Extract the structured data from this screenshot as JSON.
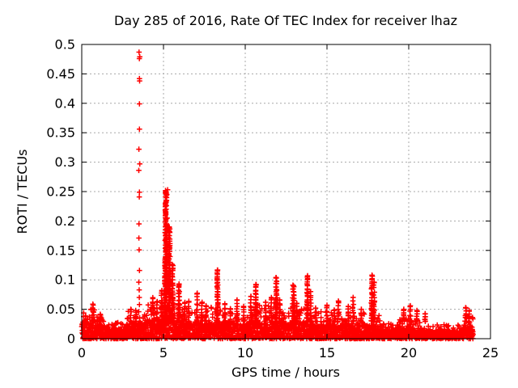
{
  "chart_data": {
    "type": "scatter",
    "title": "Day 285 of 2016, Rate Of TEC Index for receiver lhaz",
    "xlabel": "GPS time / hours",
    "ylabel": "ROTI / TECUs",
    "xlim": [
      0,
      25
    ],
    "ylim": [
      0,
      0.5
    ],
    "xticks": [
      0,
      5,
      10,
      15,
      20,
      25
    ],
    "yticks": [
      0,
      0.05,
      0.1,
      0.15,
      0.2,
      0.25,
      0.3,
      0.35,
      0.4,
      0.45,
      0.5
    ],
    "grid": true,
    "legend": "none",
    "marker": "plus",
    "marker_color": "#ff0000",
    "grid_color": "#a8a8a8",
    "border_color": "#000000",
    "background": "#ffffff",
    "x_data_range": [
      0,
      23.95
    ],
    "outlier_column": {
      "x": 3.52,
      "values": [
        0.487,
        0.479,
        0.476,
        0.442,
        0.438,
        0.399,
        0.356,
        0.322,
        0.297,
        0.286,
        0.249,
        0.241,
        0.195,
        0.171,
        0.151,
        0.116,
        0.096,
        0.083,
        0.07,
        0.058
      ]
    },
    "secondary_peak_points": [
      [
        5.17,
        0.249
      ],
      [
        5.21,
        0.245
      ],
      [
        5.25,
        0.253
      ],
      [
        5.18,
        0.226
      ],
      [
        5.23,
        0.205
      ],
      [
        5.2,
        0.187
      ],
      [
        5.12,
        0.175
      ],
      [
        5.22,
        0.162
      ]
    ],
    "band_segments": [
      {
        "x0": 0.0,
        "x1": 0.55,
        "solid": 0.028,
        "ragged": 0.045
      },
      {
        "x0": 0.55,
        "x1": 0.95,
        "solid": 0.032,
        "ragged": 0.052
      },
      {
        "x0": 0.95,
        "x1": 1.45,
        "solid": 0.024,
        "ragged": 0.038
      },
      {
        "x0": 1.45,
        "x1": 2.75,
        "solid": 0.017,
        "ragged": 0.028
      },
      {
        "x0": 2.75,
        "x1": 3.8,
        "solid": 0.026,
        "ragged": 0.048
      },
      {
        "x0": 3.8,
        "x1": 4.85,
        "solid": 0.03,
        "ragged": 0.058
      },
      {
        "x0": 4.85,
        "x1": 5.65,
        "solid": 0.038,
        "ragged": 0.09
      },
      {
        "x0": 5.65,
        "x1": 6.2,
        "solid": 0.03,
        "ragged": 0.062
      },
      {
        "x0": 6.2,
        "x1": 7.9,
        "solid": 0.027,
        "ragged": 0.05
      },
      {
        "x0": 7.9,
        "x1": 8.5,
        "solid": 0.028,
        "ragged": 0.055
      },
      {
        "x0": 8.5,
        "x1": 10.2,
        "solid": 0.026,
        "ragged": 0.048
      },
      {
        "x0": 10.2,
        "x1": 12.1,
        "solid": 0.028,
        "ragged": 0.058
      },
      {
        "x0": 12.1,
        "x1": 14.1,
        "solid": 0.028,
        "ragged": 0.055
      },
      {
        "x0": 14.1,
        "x1": 17.6,
        "solid": 0.024,
        "ragged": 0.046
      },
      {
        "x0": 17.6,
        "x1": 18.35,
        "solid": 0.022,
        "ragged": 0.042
      },
      {
        "x0": 18.35,
        "x1": 19.45,
        "solid": 0.015,
        "ragged": 0.026
      },
      {
        "x0": 19.45,
        "x1": 20.8,
        "solid": 0.018,
        "ragged": 0.035
      },
      {
        "x0": 20.8,
        "x1": 23.25,
        "solid": 0.013,
        "ragged": 0.024
      },
      {
        "x0": 23.25,
        "x1": 23.95,
        "solid": 0.02,
        "ragged": 0.04
      }
    ],
    "spikes": [
      {
        "x": 0.7,
        "max": 0.057,
        "w": 0.07,
        "d": 1
      },
      {
        "x": 1.15,
        "max": 0.04,
        "w": 0.05,
        "d": 1
      },
      {
        "x": 3.0,
        "max": 0.05,
        "w": 0.06,
        "d": 1
      },
      {
        "x": 3.3,
        "max": 0.048,
        "w": 0.05,
        "d": 1
      },
      {
        "x": 4.35,
        "max": 0.068,
        "w": 0.08,
        "d": 1
      },
      {
        "x": 4.6,
        "max": 0.062,
        "w": 0.06,
        "d": 1
      },
      {
        "x": 4.9,
        "max": 0.082,
        "w": 0.07,
        "d": 1
      },
      {
        "x": 5.15,
        "max": 0.25,
        "w": 0.1,
        "d": 3
      },
      {
        "x": 5.35,
        "max": 0.19,
        "w": 0.09,
        "d": 2
      },
      {
        "x": 5.55,
        "max": 0.125,
        "w": 0.07,
        "d": 2
      },
      {
        "x": 5.95,
        "max": 0.092,
        "w": 0.06,
        "d": 2
      },
      {
        "x": 6.3,
        "max": 0.06,
        "w": 0.05,
        "d": 1
      },
      {
        "x": 6.55,
        "max": 0.062,
        "w": 0.05,
        "d": 1
      },
      {
        "x": 7.05,
        "max": 0.076,
        "w": 0.05,
        "d": 1
      },
      {
        "x": 7.35,
        "max": 0.06,
        "w": 0.05,
        "d": 1
      },
      {
        "x": 7.6,
        "max": 0.056,
        "w": 0.04,
        "d": 1
      },
      {
        "x": 8.3,
        "max": 0.115,
        "w": 0.05,
        "d": 2
      },
      {
        "x": 8.75,
        "max": 0.058,
        "w": 0.04,
        "d": 1
      },
      {
        "x": 9.1,
        "max": 0.05,
        "w": 0.04,
        "d": 1
      },
      {
        "x": 9.5,
        "max": 0.066,
        "w": 0.05,
        "d": 1
      },
      {
        "x": 9.9,
        "max": 0.055,
        "w": 0.04,
        "d": 1
      },
      {
        "x": 10.35,
        "max": 0.072,
        "w": 0.05,
        "d": 1
      },
      {
        "x": 10.65,
        "max": 0.092,
        "w": 0.05,
        "d": 2
      },
      {
        "x": 11.25,
        "max": 0.062,
        "w": 0.05,
        "d": 1
      },
      {
        "x": 11.6,
        "max": 0.07,
        "w": 0.05,
        "d": 1
      },
      {
        "x": 11.9,
        "max": 0.103,
        "w": 0.06,
        "d": 2
      },
      {
        "x": 12.1,
        "max": 0.066,
        "w": 0.05,
        "d": 1
      },
      {
        "x": 12.95,
        "max": 0.09,
        "w": 0.09,
        "d": 2
      },
      {
        "x": 13.15,
        "max": 0.06,
        "w": 0.05,
        "d": 1
      },
      {
        "x": 13.8,
        "max": 0.105,
        "w": 0.05,
        "d": 2
      },
      {
        "x": 14.0,
        "max": 0.08,
        "w": 0.04,
        "d": 1
      },
      {
        "x": 14.3,
        "max": 0.052,
        "w": 0.04,
        "d": 1
      },
      {
        "x": 15.0,
        "max": 0.057,
        "w": 0.05,
        "d": 1
      },
      {
        "x": 15.45,
        "max": 0.048,
        "w": 0.04,
        "d": 1
      },
      {
        "x": 15.7,
        "max": 0.064,
        "w": 0.05,
        "d": 1
      },
      {
        "x": 16.3,
        "max": 0.055,
        "w": 0.04,
        "d": 1
      },
      {
        "x": 16.6,
        "max": 0.07,
        "w": 0.05,
        "d": 1
      },
      {
        "x": 17.1,
        "max": 0.05,
        "w": 0.04,
        "d": 1
      },
      {
        "x": 17.75,
        "max": 0.108,
        "w": 0.06,
        "d": 2
      },
      {
        "x": 17.88,
        "max": 0.096,
        "w": 0.05,
        "d": 1
      },
      {
        "x": 19.7,
        "max": 0.05,
        "w": 0.04,
        "d": 1
      },
      {
        "x": 20.1,
        "max": 0.056,
        "w": 0.05,
        "d": 1
      },
      {
        "x": 20.5,
        "max": 0.048,
        "w": 0.04,
        "d": 1
      },
      {
        "x": 21.0,
        "max": 0.042,
        "w": 0.04,
        "d": 1
      },
      {
        "x": 23.5,
        "max": 0.052,
        "w": 0.06,
        "d": 1
      },
      {
        "x": 23.7,
        "max": 0.048,
        "w": 0.05,
        "d": 1
      }
    ]
  }
}
